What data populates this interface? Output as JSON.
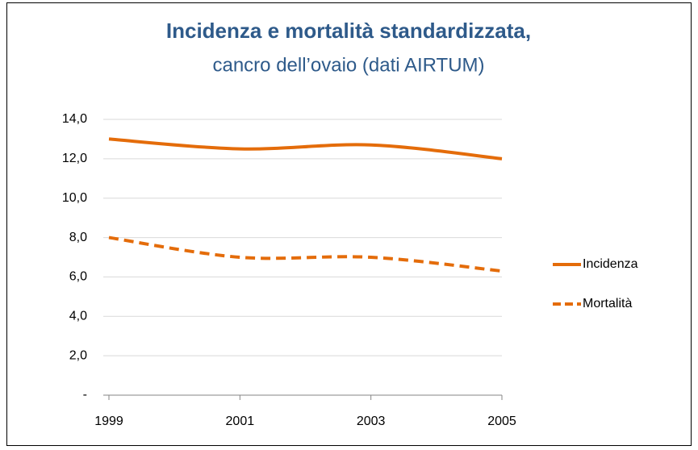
{
  "chart_data": {
    "type": "line",
    "title": "Incidenza e mortalità standardizzata,",
    "subtitle": "cancro dell’ovaio (dati AIRTUM)",
    "categories": [
      "1999",
      "2001",
      "2003",
      "2005"
    ],
    "series": [
      {
        "name": "Incidenza",
        "color": "#e46c0a",
        "dash": "solid",
        "values": [
          13.0,
          12.5,
          12.7,
          12.0
        ]
      },
      {
        "name": "Mortalità",
        "color": "#e46c0a",
        "dash": "dashed",
        "values": [
          8.0,
          7.0,
          7.0,
          6.3
        ]
      }
    ],
    "ylim": [
      0,
      14
    ],
    "yticks": [
      {
        "value": 0,
        "label": "-"
      },
      {
        "value": 2,
        "label": "2,0"
      },
      {
        "value": 4,
        "label": "4,0"
      },
      {
        "value": 6,
        "label": "6,0"
      },
      {
        "value": 8,
        "label": "8,0"
      },
      {
        "value": 10,
        "label": "10,0"
      },
      {
        "value": 12,
        "label": "12,0"
      },
      {
        "value": 14,
        "label": "14,0"
      }
    ],
    "grid": true,
    "legend": "right"
  }
}
